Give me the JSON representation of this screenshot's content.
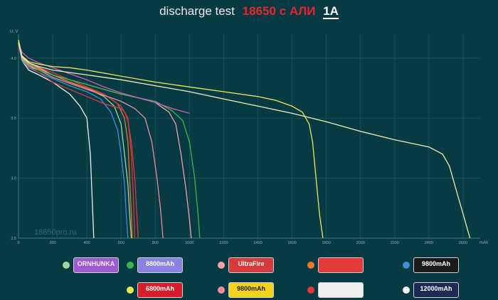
{
  "title": {
    "prefix": "discharge test",
    "model": "18650 с АЛИ",
    "current": "1A"
  },
  "watermark": "18650pro.ru",
  "chart_data": {
    "type": "line",
    "xlabel": "mAh",
    "ylabel": "U, V",
    "xlim": [
      0,
      2700
    ],
    "ylim": [
      2.5,
      4.2
    ],
    "xticks": [
      0,
      200,
      400,
      600,
      800,
      1000,
      1200,
      1400,
      1600,
      1800,
      2000,
      2200,
      2400,
      2600
    ],
    "yticks": [
      2.5,
      3.0,
      3.5,
      4.0
    ],
    "grid": true,
    "series": [
      {
        "color": "#f0f0f0",
        "x": [
          0,
          20,
          60,
          120,
          200,
          300,
          360,
          400,
          420,
          430,
          440
        ],
        "y": [
          4.15,
          3.98,
          3.9,
          3.86,
          3.8,
          3.7,
          3.6,
          3.5,
          3.2,
          2.85,
          2.5
        ]
      },
      {
        "color": "#3d8fd1",
        "x": [
          0,
          20,
          60,
          120,
          200,
          300,
          400,
          480,
          540,
          580,
          600,
          620,
          630,
          640
        ],
        "y": [
          4.12,
          3.98,
          3.92,
          3.88,
          3.83,
          3.77,
          3.72,
          3.66,
          3.55,
          3.4,
          3.2,
          2.95,
          2.7,
          2.5
        ]
      },
      {
        "color": "#a2d6a0",
        "x": [
          0,
          20,
          60,
          120,
          200,
          300,
          400,
          500,
          560,
          600,
          620,
          640,
          650,
          660
        ],
        "y": [
          4.12,
          3.99,
          3.93,
          3.9,
          3.86,
          3.8,
          3.75,
          3.68,
          3.6,
          3.45,
          3.2,
          2.95,
          2.7,
          2.5
        ]
      },
      {
        "color": "#e8792f",
        "x": [
          0,
          20,
          60,
          120,
          200,
          300,
          400,
          500,
          580,
          620,
          640,
          650,
          660,
          665
        ],
        "y": [
          4.14,
          4.0,
          3.95,
          3.91,
          3.86,
          3.8,
          3.75,
          3.7,
          3.62,
          3.5,
          3.3,
          3.0,
          2.7,
          2.5
        ]
      },
      {
        "color": "#e0353a",
        "x": [
          0,
          20,
          60,
          120,
          200,
          300,
          400,
          500,
          600,
          640,
          660,
          670,
          680
        ],
        "y": [
          4.12,
          4.0,
          3.95,
          3.92,
          3.88,
          3.82,
          3.76,
          3.7,
          3.6,
          3.5,
          3.2,
          2.9,
          2.5
        ]
      },
      {
        "color": "#d93a3a",
        "x": [
          0,
          20,
          60,
          120,
          200,
          300,
          400,
          500,
          600,
          620,
          640,
          660,
          680,
          700
        ],
        "y": [
          4.14,
          4.0,
          3.93,
          3.88,
          3.8,
          3.74,
          3.68,
          3.62,
          3.58,
          3.55,
          3.48,
          3.3,
          3.0,
          2.5
        ]
      },
      {
        "color": "#ee8c9c",
        "x": [
          0,
          20,
          60,
          120,
          200,
          300,
          400,
          500,
          600,
          680,
          740,
          780,
          810,
          830,
          845
        ],
        "y": [
          4.13,
          4.0,
          3.94,
          3.9,
          3.84,
          3.79,
          3.74,
          3.69,
          3.64,
          3.58,
          3.5,
          3.3,
          3.0,
          2.75,
          2.5
        ]
      },
      {
        "color": "#f2a3a8",
        "x": [
          0,
          20,
          60,
          120,
          200,
          300,
          400,
          500,
          600,
          700,
          800,
          880,
          920,
          950,
          980,
          1000,
          1010
        ],
        "y": [
          4.15,
          4.02,
          3.96,
          3.92,
          3.86,
          3.82,
          3.78,
          3.74,
          3.7,
          3.67,
          3.63,
          3.55,
          3.45,
          3.2,
          2.9,
          2.65,
          2.5
        ]
      },
      {
        "color": "#3ab54a",
        "x": [
          0,
          20,
          60,
          120,
          200,
          300,
          400,
          500,
          600,
          700,
          800,
          900,
          960,
          1000,
          1030,
          1050,
          1060
        ],
        "y": [
          4.14,
          4.01,
          3.95,
          3.9,
          3.86,
          3.82,
          3.78,
          3.74,
          3.7,
          3.67,
          3.64,
          3.56,
          3.48,
          3.3,
          3.0,
          2.7,
          2.5
        ]
      },
      {
        "color": "#d85ab6",
        "x": [
          0,
          20,
          60,
          120,
          200,
          300,
          400,
          500,
          600,
          700,
          800,
          900,
          1000
        ],
        "y": [
          4.12,
          4.05,
          4.0,
          3.96,
          3.92,
          3.87,
          3.82,
          3.76,
          3.71,
          3.67,
          3.63,
          3.58,
          3.54
        ]
      },
      {
        "color": "#e8e85a",
        "x": [
          0,
          20,
          60,
          120,
          200,
          300,
          400,
          600,
          800,
          1000,
          1200,
          1400,
          1500,
          1600,
          1660,
          1700,
          1720,
          1740,
          1760,
          1780
        ],
        "y": [
          4.15,
          4.02,
          3.97,
          3.95,
          3.93,
          3.92,
          3.9,
          3.85,
          3.8,
          3.76,
          3.72,
          3.68,
          3.65,
          3.6,
          3.55,
          3.45,
          3.3,
          3.0,
          2.7,
          2.5
        ]
      },
      {
        "color": "#efefb5",
        "x": [
          0,
          20,
          60,
          120,
          200,
          300,
          400,
          600,
          800,
          1000,
          1200,
          1400,
          1600,
          1800,
          2000,
          2200,
          2400,
          2480,
          2520,
          2560,
          2600,
          2640
        ],
        "y": [
          4.13,
          4.01,
          3.96,
          3.93,
          3.9,
          3.88,
          3.86,
          3.82,
          3.77,
          3.72,
          3.66,
          3.6,
          3.54,
          3.47,
          3.39,
          3.32,
          3.26,
          3.2,
          3.1,
          2.9,
          2.7,
          2.5
        ]
      }
    ]
  },
  "legend": [
    {
      "color": "#a2d6a0",
      "label": "ORNHUNKA",
      "bg": "#9d5ad1",
      "fg": "#f4e9ff"
    },
    {
      "color": "#3ab54a",
      "label": "8800mAh",
      "bg": "#8a82e0",
      "fg": "#ffffff"
    },
    {
      "color": "#f2a3a8",
      "label": "UltraFire",
      "bg": "#d63a3a",
      "fg": "#ffffff"
    },
    {
      "color": "#e8792f",
      "label": "",
      "bg": "#e53a3a",
      "fg": "#ffffff"
    },
    {
      "color": "#3d8fd1",
      "label": "9800mAh",
      "bg": "#1a1a1a",
      "fg": "#ffffff"
    },
    {
      "color": "#e8e85a",
      "label": "6800mAh",
      "bg": "#d41f2a",
      "fg": "#ffffff"
    },
    {
      "color": "#ee8c9c",
      "label": "9800mAh",
      "bg": "#f4d21f",
      "fg": "#222222"
    },
    {
      "color": "#e0353a",
      "label": "",
      "bg": "#eeeeee",
      "fg": "#222222"
    },
    {
      "color": "#f0f0f0",
      "label": "12000mAh",
      "bg": "#1e2a55",
      "fg": "#ffffff"
    }
  ]
}
